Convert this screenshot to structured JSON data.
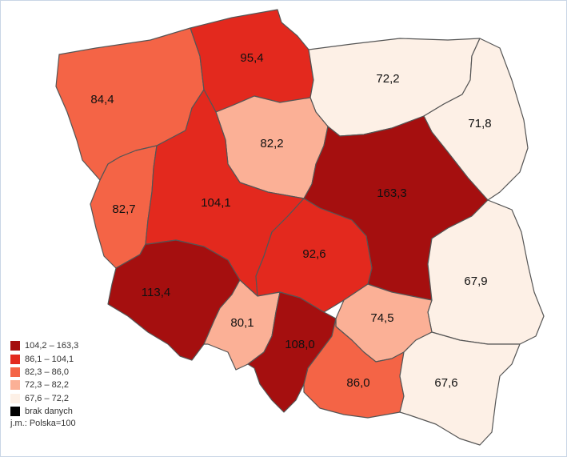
{
  "map": {
    "regions": [
      {
        "id": "zachodniopomorskie",
        "value": "84,4",
        "class": 2
      },
      {
        "id": "pomorskie",
        "value": "95,4",
        "class": 1
      },
      {
        "id": "warminsko-mazurskie",
        "value": "72,2",
        "class": 4
      },
      {
        "id": "podlaskie",
        "value": "71,8",
        "class": 4
      },
      {
        "id": "kujawsko-pomorskie",
        "value": "82,2",
        "class": 3
      },
      {
        "id": "lubuskie",
        "value": "82,7",
        "class": 2
      },
      {
        "id": "wielkopolskie",
        "value": "104,1",
        "class": 1
      },
      {
        "id": "mazowieckie",
        "value": "163,3",
        "class": 0
      },
      {
        "id": "lodzkie",
        "value": "92,6",
        "class": 1
      },
      {
        "id": "lubelskie",
        "value": "67,9",
        "class": 4
      },
      {
        "id": "dolnoslaskie",
        "value": "113,4",
        "class": 0
      },
      {
        "id": "opolskie",
        "value": "80,1",
        "class": 3
      },
      {
        "id": "slaskie",
        "value": "108,0",
        "class": 0
      },
      {
        "id": "swietokrzyskie",
        "value": "74,5",
        "class": 3
      },
      {
        "id": "malopolskie",
        "value": "86,0",
        "class": 2
      },
      {
        "id": "podkarpackie",
        "value": "67,6",
        "class": 4
      }
    ]
  },
  "legend": {
    "items": [
      {
        "label": "104,2 – 163,3",
        "color": "#a50f0f"
      },
      {
        "label": "86,1 – 104,1",
        "color": "#e3291e"
      },
      {
        "label": "82,3 – 86,0",
        "color": "#f46446"
      },
      {
        "label": "72,3 – 82,2",
        "color": "#fbb096"
      },
      {
        "label": "67,6 – 72,2",
        "color": "#fdf0e6"
      },
      {
        "label": "brak danych",
        "color": "#000000"
      }
    ],
    "unit": "j.m.: Polska=100"
  }
}
